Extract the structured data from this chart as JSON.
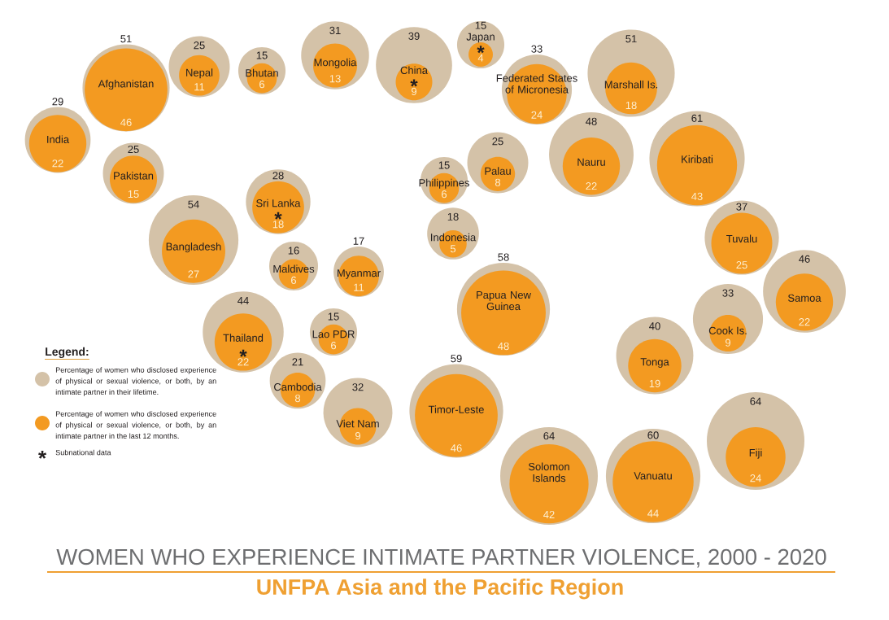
{
  "chart_data": {
    "type": "other",
    "title": "WOMEN WHO EXPERIENCE INTIMATE PARTNER VIOLENCE, 2000 - 2020",
    "subtitle": "UNFPA Asia and the Pacific Region",
    "legend_title": "Legend:",
    "legend": "bottom left",
    "data_labels": true,
    "categories": [
      "Afghanistan",
      "Nepal",
      "Bhutan",
      "Mongolia",
      "China",
      "Japan",
      "Federated States of Micronesia",
      "Marshall Is.",
      "India",
      "Pakistan",
      "Kiribati",
      "Nauru",
      "Palau",
      "Philippines",
      "Sri Lanka",
      "Bangladesh",
      "Indonesia",
      "Tuvalu",
      "Maldives",
      "Myanmar",
      "Samoa",
      "Papua New Guinea",
      "Cook Is.",
      "Thailand",
      "Lao PDR",
      "Tonga",
      "Cambodia",
      "Viet Nam",
      "Timor-Leste",
      "Fiji",
      "Solomon Islands",
      "Vanuatu"
    ],
    "series": [
      {
        "name": "Percentage of women who disclosed experience of physical or sexual violence, or both, by an intimate partner in their lifetime.",
        "color": "#d4c2a8",
        "values": [
          51,
          25,
          15,
          31,
          39,
          15,
          33,
          51,
          29,
          25,
          61,
          48,
          25,
          15,
          28,
          54,
          18,
          37,
          16,
          17,
          46,
          58,
          33,
          44,
          15,
          40,
          21,
          32,
          59,
          64,
          64,
          60
        ]
      },
      {
        "name": "Percentage of women who disclosed experience of physical or sexual violence, or both, by an intimate partner in the last 12 months.",
        "color": "#f39a21",
        "values": [
          46,
          11,
          6,
          13,
          9,
          4,
          24,
          18,
          22,
          15,
          43,
          22,
          8,
          6,
          18,
          27,
          5,
          25,
          6,
          11,
          22,
          48,
          9,
          22,
          6,
          19,
          8,
          9,
          46,
          24,
          42,
          44
        ]
      }
    ],
    "annotations": [
      {
        "text": "*",
        "x": "China"
      },
      {
        "text": "*",
        "x": "Japan"
      },
      {
        "text": "*",
        "x": "Sri Lanka"
      },
      {
        "text": "*",
        "x": "Thailand"
      },
      "Subnational data"
    ]
  }
}
